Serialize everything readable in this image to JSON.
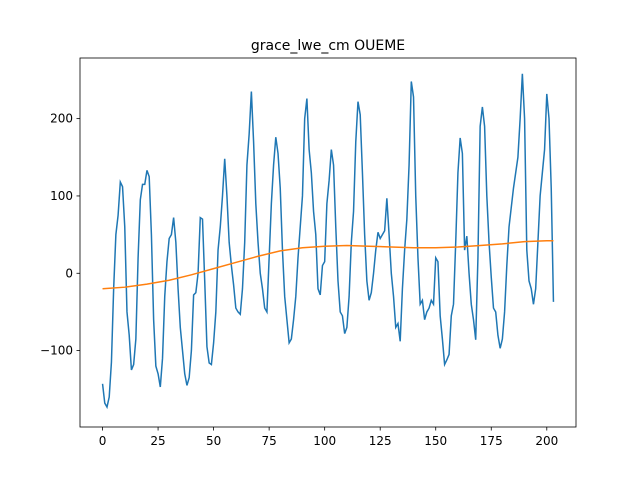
{
  "chart_data": {
    "type": "line",
    "title": "grace_lwe_cm OUEME",
    "xlim": [
      -10.15,
      213.15
    ],
    "ylim": [
      -198.8,
      278.4
    ],
    "xticks": [
      0,
      25,
      50,
      75,
      100,
      125,
      150,
      175,
      200
    ],
    "yticks": [
      {
        "value": -100,
        "label": "−100"
      },
      0,
      100,
      200
    ],
    "series": [
      {
        "color": "#1f77b4",
        "x": [
          0,
          1,
          2,
          3,
          4,
          5,
          6,
          7,
          8,
          9,
          10,
          11,
          12,
          13,
          14,
          15,
          16,
          17,
          18,
          19,
          20,
          21,
          22,
          23,
          24,
          25,
          26,
          27,
          28,
          29,
          30,
          31,
          32,
          33,
          34,
          35,
          36,
          37,
          38,
          39,
          40,
          41,
          42,
          43,
          44,
          45,
          46,
          47,
          48,
          49,
          50,
          51,
          52,
          53,
          54,
          55,
          56,
          57,
          58,
          59,
          60,
          61,
          62,
          63,
          64,
          65,
          66,
          67,
          68,
          69,
          70,
          71,
          72,
          73,
          74,
          75,
          76,
          77,
          78,
          79,
          80,
          81,
          82,
          83,
          84,
          85,
          86,
          87,
          88,
          89,
          90,
          91,
          92,
          93,
          94,
          95,
          96,
          97,
          98,
          99,
          100,
          101,
          102,
          103,
          104,
          105,
          106,
          107,
          108,
          109,
          110,
          111,
          112,
          113,
          114,
          115,
          116,
          117,
          118,
          119,
          120,
          121,
          122,
          123,
          124,
          125,
          126,
          127,
          128,
          129,
          130,
          131,
          132,
          133,
          134,
          135,
          136,
          137,
          138,
          139,
          140,
          141,
          142,
          143,
          144,
          145,
          146,
          147,
          148,
          149,
          150,
          151,
          152,
          153,
          154,
          155,
          156,
          157,
          158,
          159,
          160,
          161,
          162,
          163,
          164,
          165,
          166,
          167,
          168,
          169,
          170,
          171,
          172,
          173,
          174,
          175,
          176,
          177,
          178,
          179,
          180,
          181,
          182,
          183,
          184,
          185,
          186,
          187,
          188,
          189,
          190,
          191,
          192,
          193,
          194,
          195,
          196,
          197,
          198,
          199,
          200,
          201,
          202,
          203
        ],
        "values": [
          -143,
          -168,
          -173,
          -160,
          -115,
          -20,
          50,
          75,
          118,
          112,
          60,
          -50,
          -80,
          -125,
          -118,
          -85,
          20,
          95,
          115,
          115,
          133,
          125,
          50,
          -60,
          -120,
          -130,
          -147,
          -110,
          -30,
          15,
          45,
          50,
          72,
          40,
          -20,
          -70,
          -100,
          -130,
          -145,
          -135,
          -100,
          -28,
          -25,
          0,
          72,
          70,
          -10,
          -95,
          -116,
          -118,
          -90,
          -50,
          30,
          60,
          100,
          148,
          100,
          40,
          10,
          -15,
          -45,
          -50,
          -53,
          -20,
          40,
          140,
          180,
          235,
          170,
          90,
          40,
          0,
          -20,
          -45,
          -50,
          20,
          90,
          140,
          176,
          155,
          110,
          30,
          -30,
          -60,
          -90,
          -85,
          -60,
          -30,
          20,
          60,
          100,
          200,
          226,
          160,
          130,
          80,
          50,
          -20,
          -28,
          10,
          15,
          90,
          120,
          160,
          140,
          60,
          -10,
          -50,
          -55,
          -78,
          -70,
          -30,
          40,
          80,
          170,
          222,
          205,
          130,
          50,
          -10,
          -35,
          -25,
          0,
          30,
          53,
          45,
          50,
          55,
          97,
          50,
          0,
          -30,
          -70,
          -65,
          -88,
          -20,
          30,
          70,
          140,
          248,
          228,
          100,
          20,
          -40,
          -35,
          -60,
          -50,
          -45,
          -35,
          -40,
          20,
          15,
          -55,
          -85,
          -118,
          -112,
          -105,
          -55,
          -40,
          40,
          130,
          175,
          155,
          30,
          48,
          0,
          -40,
          -60,
          -86,
          20,
          190,
          215,
          190,
          100,
          40,
          -5,
          -45,
          -50,
          -80,
          -97,
          -85,
          -50,
          10,
          60,
          85,
          110,
          130,
          150,
          200,
          258,
          200,
          30,
          -10,
          -20,
          -40,
          -20,
          40,
          100,
          130,
          160,
          232,
          200,
          110,
          -37
        ]
      },
      {
        "color": "#ff7f0e",
        "x": [
          0,
          10,
          20,
          30,
          40,
          50,
          60,
          70,
          80,
          90,
          100,
          110,
          120,
          130,
          140,
          150,
          160,
          170,
          180,
          190,
          200,
          203
        ],
        "values": [
          -20,
          -18,
          -14,
          -9,
          -2,
          6,
          14,
          22,
          29,
          33,
          35,
          36,
          35,
          34,
          33,
          33,
          34,
          36,
          38,
          41,
          42,
          42
        ]
      }
    ]
  }
}
